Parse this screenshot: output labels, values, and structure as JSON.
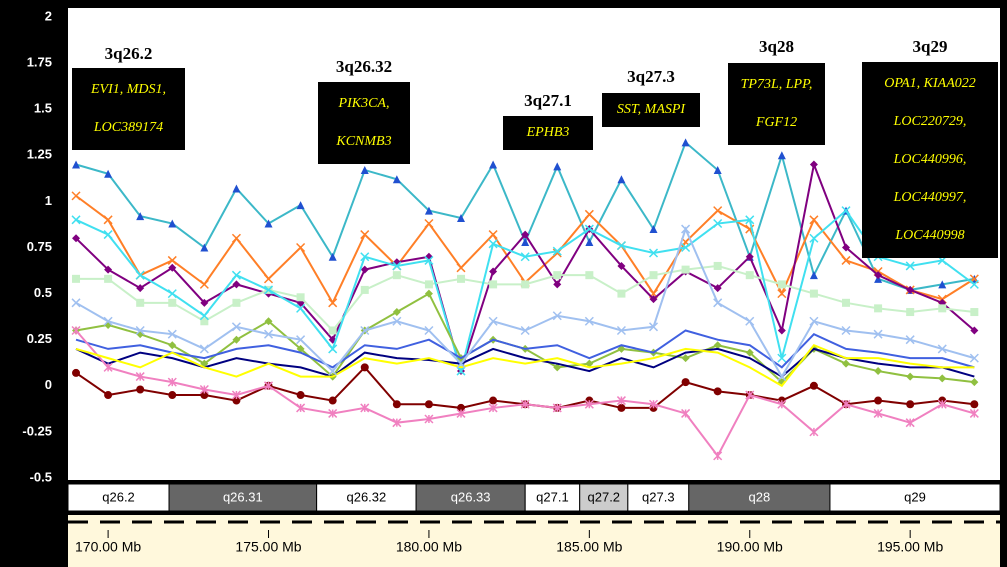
{
  "chart_data": {
    "type": "line",
    "x": [
      169,
      170,
      171,
      172,
      173,
      174,
      175,
      176,
      177,
      178,
      179,
      180,
      181,
      182,
      183,
      184,
      185,
      186,
      187,
      188,
      189,
      190,
      191,
      192,
      193,
      194,
      195,
      196,
      197
    ],
    "xlim": [
      168.75,
      197.8
    ],
    "ylim": [
      -0.5,
      2
    ],
    "yticks": [
      2,
      1.75,
      1.5,
      1.25,
      1,
      0.75,
      0.5,
      0.25,
      0,
      -0.25,
      -0.5
    ],
    "xticks": [
      {
        "value": 170,
        "label": "170.00 Mb"
      },
      {
        "value": 175,
        "label": "175.00 Mb"
      },
      {
        "value": 180,
        "label": "180.00 Mb"
      },
      {
        "value": 185,
        "label": "185.00 Mb"
      },
      {
        "value": 190,
        "label": "190.00 Mb"
      },
      {
        "value": 195,
        "label": "195.00 Mb"
      }
    ],
    "bands": [
      {
        "name": "q26.2",
        "start": 168.75,
        "end": 171.9,
        "color": "#ffffff"
      },
      {
        "name": "q26.31",
        "start": 171.9,
        "end": 176.5,
        "color": "#666666"
      },
      {
        "name": "q26.32",
        "start": 176.5,
        "end": 179.6,
        "color": "#ffffff"
      },
      {
        "name": "q26.33",
        "start": 179.6,
        "end": 183.0,
        "color": "#666666"
      },
      {
        "name": "q27.1",
        "start": 183.0,
        "end": 184.7,
        "color": "#ffffff"
      },
      {
        "name": "q27.2",
        "start": 184.7,
        "end": 186.2,
        "color": "#cccccc"
      },
      {
        "name": "q27.3",
        "start": 186.2,
        "end": 188.1,
        "color": "#ffffff"
      },
      {
        "name": "q28",
        "start": 188.1,
        "end": 192.5,
        "color": "#666666"
      },
      {
        "name": "q29",
        "start": 192.5,
        "end": 197.8,
        "color": "#ffffff"
      }
    ],
    "annotations": [
      {
        "title": "3q26.2",
        "genes": [
          "EVI1, MDS1,",
          "LOC389174"
        ]
      },
      {
        "title": "3q26.32",
        "genes": [
          "PIK3CA,",
          "KCNMB3"
        ]
      },
      {
        "title": "3q27.1",
        "genes": [
          "EPHB3"
        ]
      },
      {
        "title": "3q27.3",
        "genes": [
          "SST, MASPI"
        ]
      },
      {
        "title": "3q28",
        "genes": [
          "TP73L, LPP,",
          "FGF12"
        ]
      },
      {
        "title": "3q29",
        "genes": [
          "OPA1, KIAA022",
          "LOC220729,",
          "LOC440996,",
          "LOC440997,",
          "LOC440998"
        ]
      }
    ],
    "series": [
      {
        "color": "#3cb8c8",
        "marker": "triangle",
        "values": [
          1.2,
          1.15,
          0.92,
          0.88,
          0.75,
          1.07,
          0.88,
          0.98,
          0.7,
          1.17,
          1.12,
          0.95,
          0.91,
          1.2,
          0.78,
          1.19,
          0.78,
          1.12,
          0.85,
          1.32,
          1.17,
          0.7,
          1.25,
          0.6,
          0.95,
          0.58,
          0.52,
          0.55,
          0.58
        ]
      },
      {
        "color": "#ff7f27",
        "marker": "x",
        "values": [
          1.03,
          0.9,
          0.6,
          0.68,
          0.55,
          0.8,
          0.58,
          0.75,
          0.45,
          0.82,
          0.65,
          0.88,
          0.64,
          0.82,
          0.56,
          0.72,
          0.93,
          0.76,
          0.5,
          0.78,
          0.95,
          0.85,
          0.5,
          0.9,
          0.68,
          0.62,
          0.52,
          0.47,
          0.58
        ]
      },
      {
        "color": "#800080",
        "marker": "diamond",
        "values": [
          0.8,
          0.63,
          0.53,
          0.64,
          0.45,
          0.55,
          0.5,
          0.45,
          0.25,
          0.63,
          0.67,
          0.7,
          0.08,
          0.62,
          0.82,
          0.55,
          0.85,
          0.65,
          0.47,
          0.62,
          0.53,
          0.7,
          0.3,
          1.2,
          0.75,
          0.6,
          0.52,
          0.45,
          0.3
        ]
      },
      {
        "color": "#c8f0c8",
        "marker": "square",
        "values": [
          0.58,
          0.58,
          0.45,
          0.45,
          0.35,
          0.45,
          0.52,
          0.48,
          0.3,
          0.52,
          0.6,
          0.55,
          0.58,
          0.55,
          0.55,
          0.6,
          0.6,
          0.5,
          0.6,
          0.63,
          0.65,
          0.6,
          0.55,
          0.5,
          0.45,
          0.42,
          0.4,
          0.42,
          0.4
        ]
      },
      {
        "color": "#40e0f0",
        "marker": "x",
        "values": [
          0.9,
          0.82,
          0.6,
          0.5,
          0.38,
          0.6,
          0.52,
          0.42,
          0.2,
          0.7,
          0.65,
          0.68,
          0.08,
          0.77,
          0.7,
          0.73,
          0.85,
          0.76,
          0.72,
          0.75,
          0.88,
          0.9,
          0.15,
          0.8,
          0.95,
          0.7,
          0.65,
          0.68,
          0.55
        ]
      },
      {
        "color": "#90c040",
        "marker": "diamond",
        "values": [
          0.3,
          0.33,
          0.28,
          0.22,
          0.12,
          0.25,
          0.35,
          0.2,
          0.05,
          0.3,
          0.4,
          0.5,
          0.15,
          0.25,
          0.2,
          0.1,
          0.12,
          0.2,
          0.18,
          0.15,
          0.22,
          0.18,
          0.02,
          0.2,
          0.12,
          0.08,
          0.05,
          0.04,
          0.02
        ]
      },
      {
        "color": "#000080",
        "marker": "none",
        "values": [
          0.2,
          0.12,
          0.18,
          0.15,
          0.1,
          0.15,
          0.12,
          0.1,
          0.05,
          0.18,
          0.15,
          0.14,
          0.12,
          0.2,
          0.15,
          0.12,
          0.08,
          0.15,
          0.1,
          0.18,
          0.2,
          0.15,
          0.05,
          0.2,
          0.15,
          0.12,
          0.1,
          0.1,
          0.05
        ]
      },
      {
        "color": "#4060e0",
        "marker": "none",
        "values": [
          0.25,
          0.2,
          0.22,
          0.18,
          0.15,
          0.2,
          0.22,
          0.18,
          0.1,
          0.22,
          0.2,
          0.25,
          0.15,
          0.25,
          0.2,
          0.22,
          0.15,
          0.22,
          0.18,
          0.3,
          0.25,
          0.22,
          0.1,
          0.28,
          0.2,
          0.18,
          0.15,
          0.15,
          0.1
        ]
      },
      {
        "color": "#800000",
        "marker": "circle",
        "values": [
          0.07,
          -0.05,
          -0.02,
          -0.05,
          -0.05,
          -0.08,
          0.0,
          -0.05,
          -0.08,
          0.1,
          -0.1,
          -0.1,
          -0.12,
          -0.08,
          -0.1,
          -0.12,
          -0.08,
          -0.12,
          -0.12,
          0.02,
          -0.03,
          -0.05,
          -0.08,
          0.0,
          -0.1,
          -0.08,
          -0.1,
          -0.08,
          -0.1
        ]
      },
      {
        "color": "#f080c0",
        "marker": "asterisk",
        "values": [
          0.3,
          0.1,
          0.05,
          0.02,
          -0.02,
          -0.05,
          0.0,
          -0.12,
          -0.15,
          -0.12,
          -0.2,
          -0.18,
          -0.15,
          -0.12,
          -0.1,
          -0.12,
          -0.1,
          -0.08,
          -0.1,
          -0.15,
          -0.38,
          -0.05,
          -0.1,
          -0.25,
          -0.1,
          -0.15,
          -0.2,
          -0.1,
          -0.15
        ]
      },
      {
        "color": "#ffff00",
        "marker": "none",
        "values": [
          0.2,
          0.15,
          0.1,
          0.18,
          0.1,
          0.05,
          0.12,
          0.05,
          0.05,
          0.15,
          0.12,
          0.15,
          0.1,
          0.15,
          0.12,
          0.15,
          0.1,
          0.12,
          0.15,
          0.2,
          0.18,
          0.1,
          0.0,
          0.22,
          0.15,
          0.15,
          0.12,
          0.1,
          0.1
        ]
      },
      {
        "color": "#a0c0f0",
        "marker": "x",
        "values": [
          0.45,
          0.35,
          0.3,
          0.28,
          0.2,
          0.32,
          0.28,
          0.25,
          0.08,
          0.3,
          0.35,
          0.3,
          0.12,
          0.35,
          0.3,
          0.38,
          0.35,
          0.3,
          0.32,
          0.85,
          0.45,
          0.35,
          0.05,
          0.35,
          0.3,
          0.28,
          0.25,
          0.2,
          0.15
        ]
      }
    ]
  }
}
